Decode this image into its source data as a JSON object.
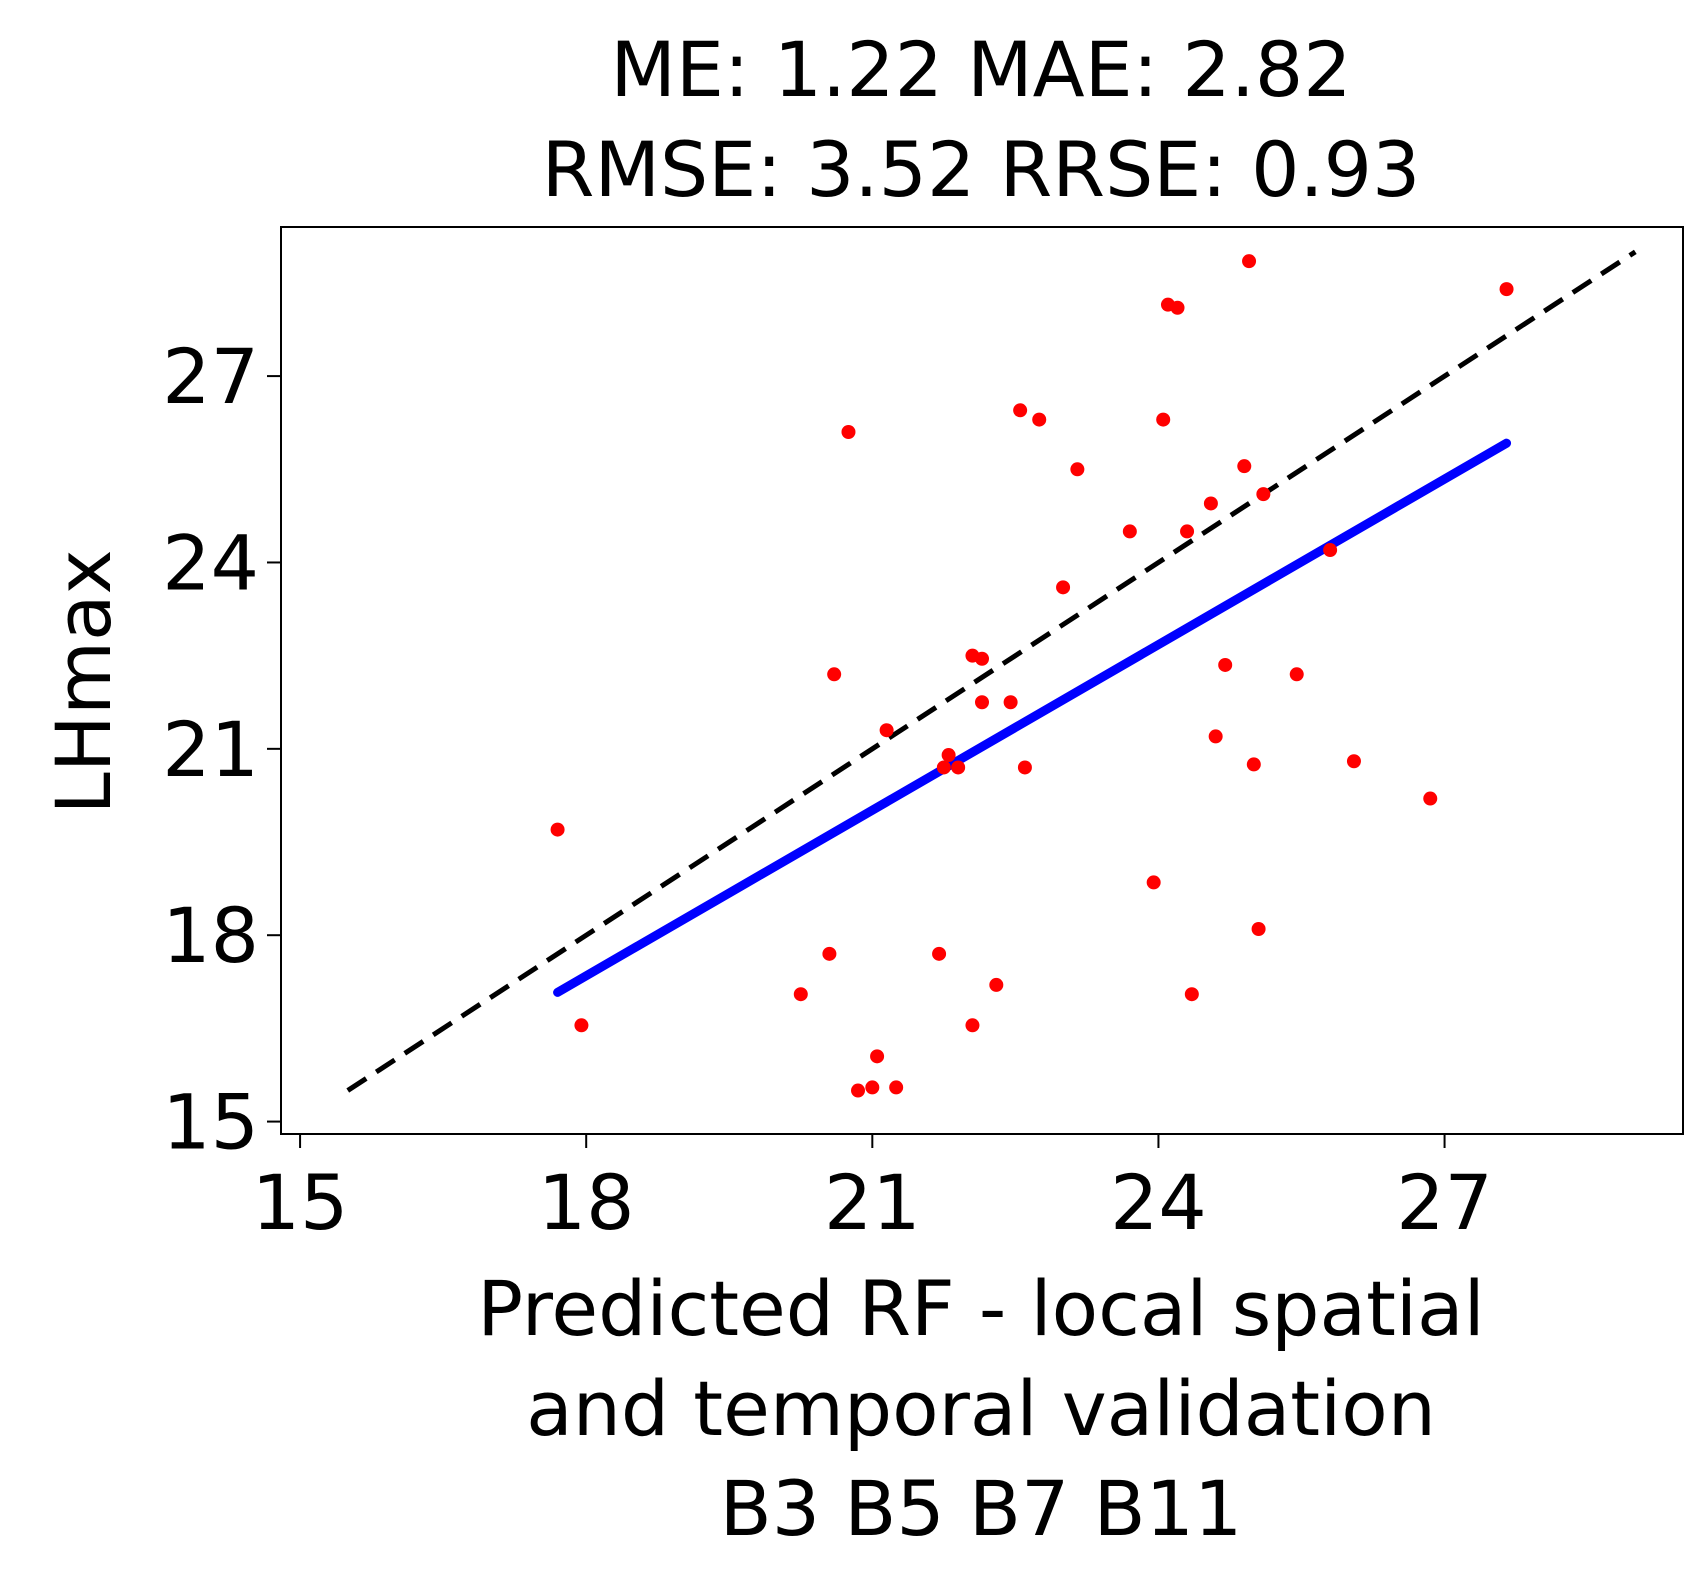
{
  "chart_data": {
    "type": "scatter",
    "title_lines": [
      "ME: 1.22 MAE: 2.82",
      "RMSE: 3.52 RRSE: 0.93"
    ],
    "xlabel_lines": [
      "Predicted RF - local spatial",
      "and temporal validation",
      "B3 B5 B7 B11"
    ],
    "ylabel": "LHmax",
    "xlim": [
      14.8,
      29.5
    ],
    "ylim": [
      14.8,
      29.4
    ],
    "x_ticks": [
      "15",
      "18",
      "21",
      "24",
      "27"
    ],
    "y_ticks": [
      "15",
      "18",
      "21",
      "24",
      "27"
    ],
    "grid": false,
    "points": [
      {
        "x": 17.7,
        "y": 19.7
      },
      {
        "x": 17.95,
        "y": 16.55
      },
      {
        "x": 20.25,
        "y": 17.05
      },
      {
        "x": 20.55,
        "y": 17.7
      },
      {
        "x": 20.6,
        "y": 22.2
      },
      {
        "x": 20.75,
        "y": 26.1
      },
      {
        "x": 20.85,
        "y": 15.5
      },
      {
        "x": 21.0,
        "y": 15.55
      },
      {
        "x": 21.05,
        "y": 16.05
      },
      {
        "x": 21.15,
        "y": 21.3
      },
      {
        "x": 21.25,
        "y": 15.55
      },
      {
        "x": 21.7,
        "y": 17.7
      },
      {
        "x": 21.75,
        "y": 20.7
      },
      {
        "x": 21.8,
        "y": 20.9
      },
      {
        "x": 21.9,
        "y": 20.7
      },
      {
        "x": 22.05,
        "y": 16.55
      },
      {
        "x": 22.05,
        "y": 22.5
      },
      {
        "x": 22.15,
        "y": 21.75
      },
      {
        "x": 22.15,
        "y": 22.45
      },
      {
        "x": 22.3,
        "y": 17.2
      },
      {
        "x": 22.45,
        "y": 21.75
      },
      {
        "x": 22.55,
        "y": 26.45
      },
      {
        "x": 22.6,
        "y": 20.7
      },
      {
        "x": 22.75,
        "y": 26.3
      },
      {
        "x": 23.0,
        "y": 23.6
      },
      {
        "x": 23.15,
        "y": 25.5
      },
      {
        "x": 23.7,
        "y": 24.5
      },
      {
        "x": 23.95,
        "y": 18.85
      },
      {
        "x": 24.05,
        "y": 26.3
      },
      {
        "x": 24.1,
        "y": 28.15
      },
      {
        "x": 24.2,
        "y": 28.1
      },
      {
        "x": 24.3,
        "y": 24.5
      },
      {
        "x": 24.35,
        "y": 17.05
      },
      {
        "x": 24.55,
        "y": 24.95
      },
      {
        "x": 24.6,
        "y": 21.2
      },
      {
        "x": 24.7,
        "y": 22.35
      },
      {
        "x": 24.9,
        "y": 25.55
      },
      {
        "x": 24.95,
        "y": 28.85
      },
      {
        "x": 25.0,
        "y": 20.75
      },
      {
        "x": 25.05,
        "y": 18.1
      },
      {
        "x": 25.1,
        "y": 25.1
      },
      {
        "x": 25.45,
        "y": 22.2
      },
      {
        "x": 25.8,
        "y": 24.2
      },
      {
        "x": 26.05,
        "y": 20.8
      },
      {
        "x": 26.85,
        "y": 20.2
      },
      {
        "x": 27.65,
        "y": 28.4
      }
    ],
    "identity_line": {
      "x": [
        15.5,
        29.0
      ],
      "y": [
        15.5,
        29.0
      ]
    },
    "fit_line": {
      "x": [
        17.7,
        27.65
      ],
      "y": [
        17.08,
        25.92
      ]
    },
    "colors": {
      "points": "#ff0000",
      "fit": "#0000ff",
      "identity": "#000000"
    }
  }
}
